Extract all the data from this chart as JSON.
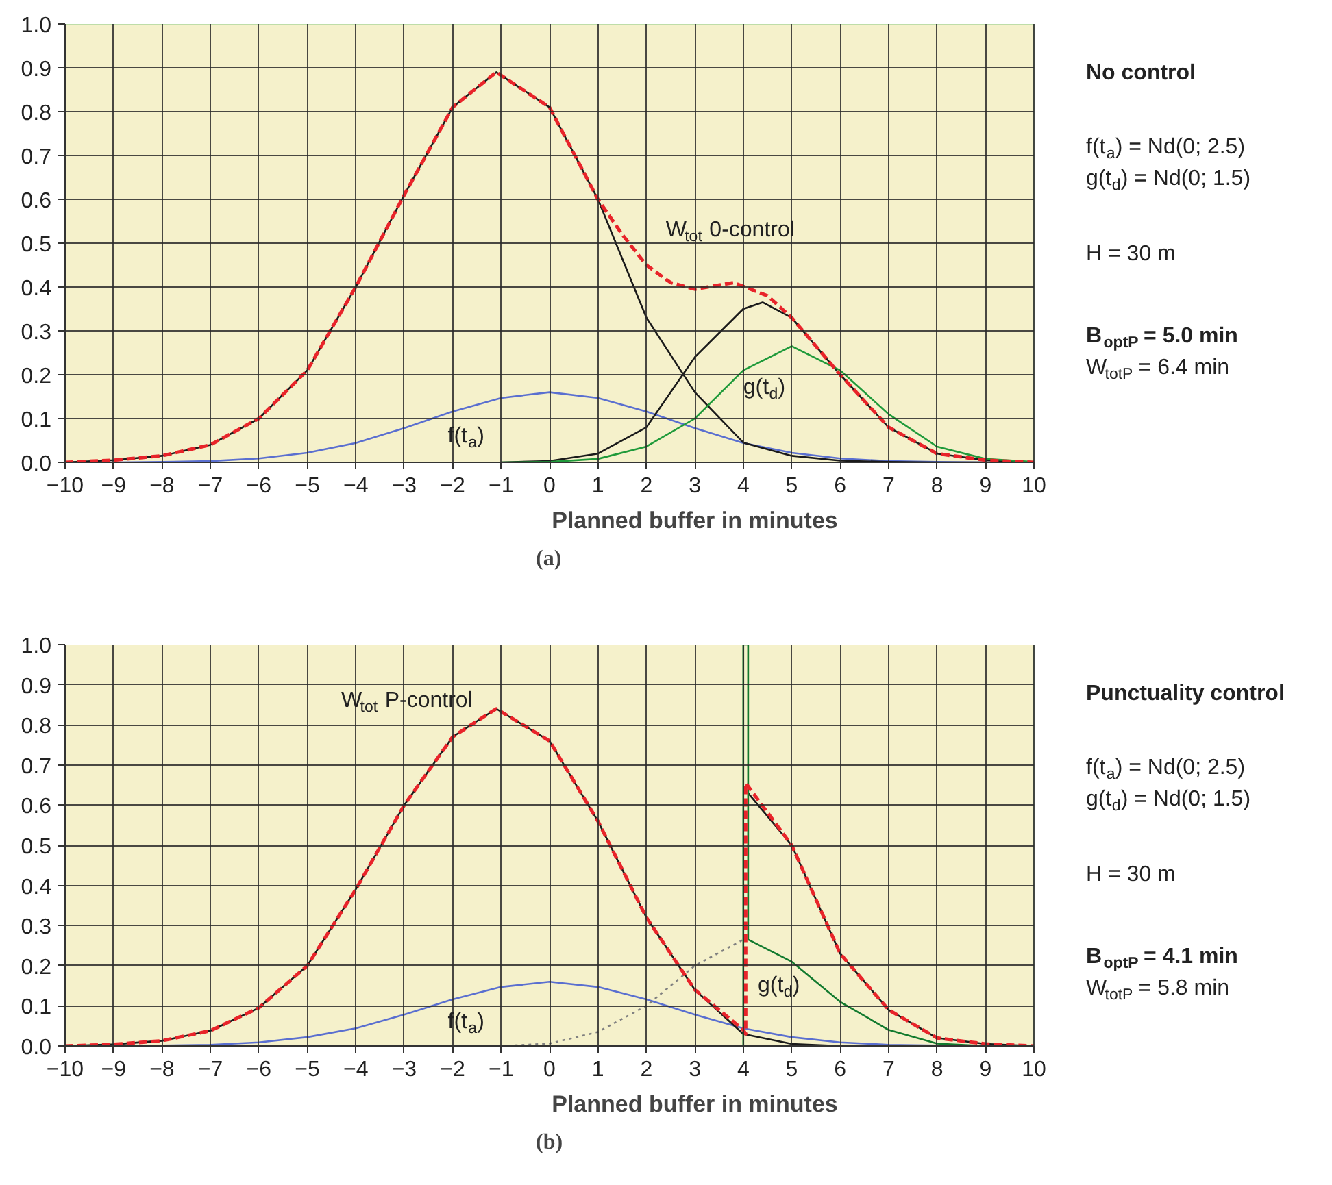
{
  "chart_data": [
    {
      "type": "line",
      "subtitle": "(a)",
      "xlabel": "Planned buffer in minutes",
      "xlim": [
        -10,
        10
      ],
      "xticks": [
        -10,
        -9,
        -8,
        -7,
        -6,
        -5,
        -4,
        -3,
        -2,
        -1,
        0,
        1,
        2,
        3,
        4,
        5,
        6,
        7,
        8,
        9,
        10
      ],
      "ylim": [
        0,
        1.0
      ],
      "yticks": [
        {
          "value": 0,
          "label": "0.0"
        },
        {
          "value": 0.1,
          "label": "0.1"
        },
        {
          "value": 0.2,
          "label": "0.2"
        },
        {
          "value": 0.3,
          "label": "0.3"
        },
        {
          "value": 0.4,
          "label": "0.4"
        },
        {
          "value": 0.5,
          "label": "0.5"
        },
        {
          "value": 0.6,
          "label": "0.6"
        },
        {
          "value": 0.7,
          "label": "0.7"
        },
        {
          "value": 0.8,
          "label": "0.8"
        },
        {
          "value": 0.9,
          "label": "0.9"
        },
        {
          "value": 1.0,
          "label": "1.0"
        }
      ],
      "grid": true,
      "marker": "none",
      "series": [
        {
          "name": "f(t$_{a}$)",
          "color": "#5a6fd0",
          "line_style": "solid",
          "x": [
            -10,
            -9,
            -8,
            -7,
            -6,
            -5,
            -4,
            -3,
            -2,
            -1,
            0,
            1,
            2,
            3,
            4,
            5,
            6,
            7,
            8,
            9,
            10
          ],
          "values": [
            0,
            0,
            0.001,
            0.003,
            0.009,
            0.022,
            0.044,
            0.078,
            0.116,
            0.147,
            0.16,
            0.147,
            0.116,
            0.078,
            0.044,
            0.022,
            0.009,
            0.003,
            0.001,
            0,
            0
          ]
        },
        {
          "color": "#1a1a1a",
          "line_style": "solid",
          "x": [
            -10,
            -9,
            -8,
            -7,
            -6,
            -5,
            -4,
            -3,
            -2,
            -1.1,
            0,
            1,
            2,
            3,
            4,
            5,
            6,
            7,
            8,
            9,
            10
          ],
          "values": [
            0,
            0.005,
            0.015,
            0.04,
            0.1,
            0.21,
            0.4,
            0.61,
            0.81,
            0.89,
            0.81,
            0.6,
            0.33,
            0.16,
            0.045,
            0.015,
            0.004,
            0.001,
            0,
            0,
            0
          ]
        },
        {
          "color": "#1a1a1a",
          "line_style": "solid",
          "x": [
            -1,
            0,
            1,
            2,
            3,
            4,
            4.4,
            5,
            6,
            7,
            8,
            9,
            10
          ],
          "values": [
            0,
            0.003,
            0.02,
            0.08,
            0.24,
            0.35,
            0.365,
            0.33,
            0.2,
            0.08,
            0.02,
            0.005,
            0
          ]
        },
        {
          "name": "g(t$_{d}$)",
          "color": "#1f9a3a",
          "line_style": "solid",
          "x": [
            -1,
            0,
            1,
            2,
            3,
            4,
            5,
            6,
            7,
            8,
            9,
            10
          ],
          "values": [
            0,
            0.001,
            0.008,
            0.036,
            0.1,
            0.21,
            0.265,
            0.21,
            0.11,
            0.036,
            0.008,
            0.001
          ]
        },
        {
          "name": "W$_{tot}$ 0-control",
          "color": "#e8242a",
          "line_style": "dashed",
          "x": [
            -10,
            -9,
            -8,
            -7,
            -6,
            -5,
            -4,
            -3,
            -2,
            -1.1,
            0,
            1,
            1.5,
            2,
            2.5,
            3,
            3.8,
            4.5,
            5,
            6,
            7,
            8,
            9,
            10
          ],
          "values": [
            0,
            0.005,
            0.015,
            0.04,
            0.1,
            0.21,
            0.4,
            0.61,
            0.81,
            0.89,
            0.81,
            0.6,
            0.52,
            0.45,
            0.41,
            0.395,
            0.41,
            0.38,
            0.33,
            0.2,
            0.08,
            0.02,
            0.005,
            0
          ]
        }
      ],
      "annotations": [
        "No control",
        "f(t$_{a}$)  = Nd(0; 2.5)",
        "g(t$_{d}$) = Nd(0; 1.5)",
        "H = 30 m",
        "B$_{optP}$ = 5.0 min",
        "W$_{totP}$ = 6.4 min"
      ]
    },
    {
      "type": "line",
      "subtitle": "(b)",
      "xlabel": "Planned buffer in minutes",
      "xlim": [
        -10,
        10
      ],
      "xticks": [
        -10,
        -9,
        -8,
        -7,
        -6,
        -5,
        -4,
        -3,
        -2,
        -1,
        0,
        1,
        2,
        3,
        4,
        5,
        6,
        7,
        8,
        9,
        10
      ],
      "ylim": [
        0,
        1.0
      ],
      "yticks": [
        {
          "value": 0,
          "label": "0.0"
        },
        {
          "value": 0.1,
          "label": "0.1"
        },
        {
          "value": 0.2,
          "label": "0.2"
        },
        {
          "value": 0.3,
          "label": "0.3"
        },
        {
          "value": 0.4,
          "label": "0.4"
        },
        {
          "value": 0.5,
          "label": "0.5"
        },
        {
          "value": 0.6,
          "label": "0.6"
        },
        {
          "value": 0.7,
          "label": "0.7"
        },
        {
          "value": 0.8,
          "label": "0.8"
        },
        {
          "value": 0.9,
          "label": "0.9"
        },
        {
          "value": 1.0,
          "label": "1.0"
        }
      ],
      "grid": true,
      "marker": "none",
      "series": [
        {
          "name": "f(t$_{a}$)",
          "color": "#5a6fd0",
          "line_style": "solid",
          "x": [
            -10,
            -9,
            -8,
            -7,
            -6,
            -5,
            -4,
            -3,
            -2,
            -1,
            0,
            1,
            2,
            3,
            4,
            5,
            6,
            7,
            8,
            9,
            10
          ],
          "values": [
            0,
            0,
            0.001,
            0.003,
            0.009,
            0.022,
            0.044,
            0.078,
            0.116,
            0.147,
            0.16,
            0.147,
            0.116,
            0.078,
            0.044,
            0.022,
            0.009,
            0.003,
            0.001,
            0,
            0
          ]
        },
        {
          "color": "#1a1a1a",
          "line_style": "solid",
          "x": [
            -10,
            -9,
            -8,
            -7,
            -6,
            -5,
            -4,
            -3,
            -2,
            -1.1,
            0,
            1,
            2,
            3,
            4,
            5,
            6
          ],
          "values": [
            0,
            0.004,
            0.013,
            0.038,
            0.095,
            0.2,
            0.39,
            0.6,
            0.77,
            0.84,
            0.76,
            0.56,
            0.32,
            0.14,
            0.03,
            0.005,
            0
          ]
        },
        {
          "color": "#1a1a1a",
          "line_style": "solid",
          "x": [
            4.1,
            5,
            6,
            7,
            8,
            9,
            10
          ],
          "values": [
            0.63,
            0.5,
            0.23,
            0.09,
            0.02,
            0.005,
            0
          ]
        },
        {
          "color": "#808080",
          "line_style": "dotted",
          "x": [
            -1,
            0,
            1,
            2,
            3,
            4
          ],
          "values": [
            0,
            0.006,
            0.035,
            0.1,
            0.2,
            0.265
          ]
        },
        {
          "name": "g(t$_{d}$)",
          "color": "#127a2e",
          "line_style": "solid",
          "x": [
            4,
            4,
            4.1,
            4.1,
            5,
            6,
            7,
            8,
            9,
            10
          ],
          "values": [
            0,
            1.0,
            1.0,
            0.265,
            0.21,
            0.11,
            0.04,
            0.006,
            0,
            0
          ]
        },
        {
          "name": "W$_{tot}$ P-control",
          "color": "#e8242a",
          "line_style": "dashed",
          "x": [
            -10,
            -9,
            -8,
            -7,
            -6,
            -5,
            -4,
            -3,
            -2,
            -1.1,
            0,
            1,
            2,
            3,
            4,
            4.05,
            4.05,
            5,
            6,
            7,
            8,
            9,
            10
          ],
          "values": [
            0,
            0.004,
            0.013,
            0.038,
            0.095,
            0.2,
            0.39,
            0.6,
            0.77,
            0.84,
            0.76,
            0.56,
            0.32,
            0.14,
            0.04,
            0.03,
            0.655,
            0.5,
            0.23,
            0.09,
            0.02,
            0.005,
            0
          ]
        }
      ],
      "annotations": [
        "Punctuality control",
        "f(t$_{a}$)  = Nd(0; 2.5)",
        "g(t$_{d}$) = Nd(0; 1.5)",
        "H = 30 m",
        "B$_{optP}$ = 4.1 min",
        "W$_{totP}$ = 5.8 min"
      ]
    }
  ]
}
